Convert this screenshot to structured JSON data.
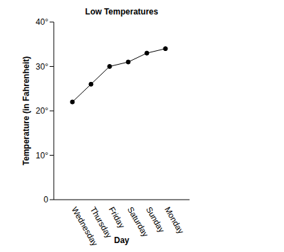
{
  "chart_data": {
    "type": "line",
    "title": "Low Temperatures",
    "x_label": "Day",
    "y_label": "Temperature (in Fahrenheit)",
    "categories": [
      "Wednesday",
      "Thursday",
      "Friday",
      "Saturday",
      "Sunday",
      "Monday"
    ],
    "values": [
      22,
      26,
      30,
      31,
      33,
      34
    ],
    "color": "#000000",
    "marker": "circle",
    "ylim": [
      0,
      40
    ],
    "yticks": [
      0,
      {
        "value": 10,
        "label": "10°"
      },
      {
        "value": 20,
        "label": "20°"
      },
      {
        "value": 30,
        "label": "30°"
      },
      {
        "value": 40,
        "label": "40°"
      }
    ],
    "grid": false
  }
}
